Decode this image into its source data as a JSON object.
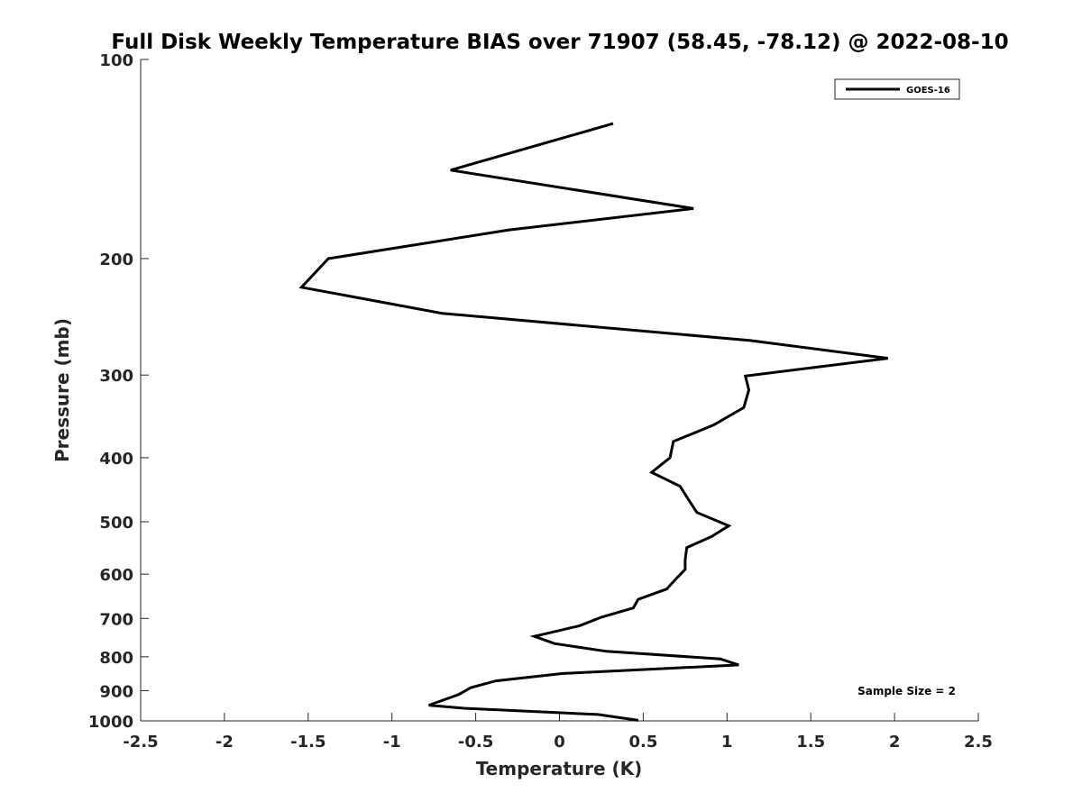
{
  "chart_data": {
    "type": "line",
    "title": "Full Disk Weekly Temperature BIAS over 71907 (58.45, -78.12) @ 2022-08-10",
    "xlabel": "Temperature (K)",
    "ylabel": "Pressure (mb)",
    "xlim": [
      -2.5,
      2.5
    ],
    "ylim": [
      1000,
      100
    ],
    "y_scale": "log",
    "y_reversed": true,
    "grid": false,
    "legend_position": "top-right",
    "x_ticks": [
      "-2.5",
      "-2",
      "-1.5",
      "-1",
      "-0.5",
      "0",
      "0.5",
      "1",
      "1.5",
      "2",
      "2.5"
    ],
    "x_tick_values": [
      -2.5,
      -2,
      -1.5,
      -1,
      -0.5,
      0,
      0.5,
      1,
      1.5,
      2,
      2.5
    ],
    "y_ticks": [
      "100",
      "200",
      "300",
      "400",
      "500",
      "600",
      "700",
      "800",
      "900",
      "1000"
    ],
    "y_tick_values": [
      100,
      200,
      300,
      400,
      500,
      600,
      700,
      800,
      900,
      1000
    ],
    "series": [
      {
        "name": "GOES-16",
        "color": "#000000",
        "points": [
          {
            "x": 0.32,
            "p": 125
          },
          {
            "x": -0.65,
            "p": 147
          },
          {
            "x": 0.8,
            "p": 168
          },
          {
            "x": -0.3,
            "p": 181
          },
          {
            "x": -1.38,
            "p": 200
          },
          {
            "x": -1.54,
            "p": 221
          },
          {
            "x": -0.7,
            "p": 242
          },
          {
            "x": 1.14,
            "p": 266
          },
          {
            "x": 1.96,
            "p": 283
          },
          {
            "x": 1.11,
            "p": 301
          },
          {
            "x": 1.13,
            "p": 316
          },
          {
            "x": 1.1,
            "p": 336
          },
          {
            "x": 0.92,
            "p": 357
          },
          {
            "x": 0.68,
            "p": 378
          },
          {
            "x": 0.66,
            "p": 400
          },
          {
            "x": 0.55,
            "p": 421
          },
          {
            "x": 0.72,
            "p": 442
          },
          {
            "x": 0.77,
            "p": 463
          },
          {
            "x": 0.82,
            "p": 484
          },
          {
            "x": 1.01,
            "p": 507
          },
          {
            "x": 0.91,
            "p": 526
          },
          {
            "x": 0.76,
            "p": 547
          },
          {
            "x": 0.75,
            "p": 570
          },
          {
            "x": 0.75,
            "p": 590
          },
          {
            "x": 0.69,
            "p": 612
          },
          {
            "x": 0.64,
            "p": 632
          },
          {
            "x": 0.47,
            "p": 655
          },
          {
            "x": 0.44,
            "p": 675
          },
          {
            "x": 0.25,
            "p": 697
          },
          {
            "x": 0.12,
            "p": 718
          },
          {
            "x": -0.06,
            "p": 736
          },
          {
            "x": -0.15,
            "p": 745
          },
          {
            "x": -0.03,
            "p": 764
          },
          {
            "x": 0.28,
            "p": 785
          },
          {
            "x": 0.96,
            "p": 806
          },
          {
            "x": 1.07,
            "p": 823
          },
          {
            "x": 0.02,
            "p": 848
          },
          {
            "x": -0.38,
            "p": 870
          },
          {
            "x": -0.53,
            "p": 891
          },
          {
            "x": -0.6,
            "p": 912
          },
          {
            "x": -0.78,
            "p": 947
          },
          {
            "x": -0.57,
            "p": 957
          },
          {
            "x": 0.23,
            "p": 978
          },
          {
            "x": 0.47,
            "p": 998
          }
        ]
      }
    ],
    "annotations": [
      {
        "text": "Sample Size = 2",
        "position": "lower-right"
      }
    ]
  }
}
